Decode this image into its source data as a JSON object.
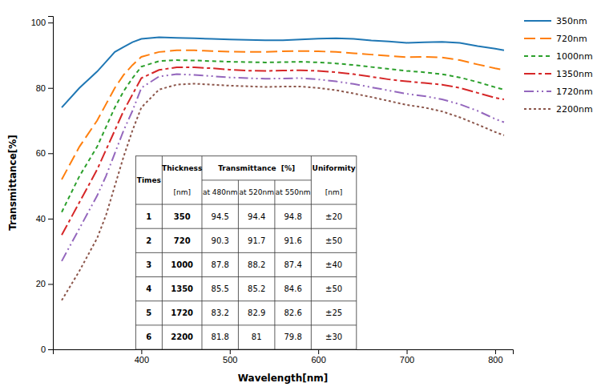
{
  "chart_data": {
    "type": "line",
    "xlabel": "Wavelength[nm]",
    "ylabel": "Transmittance[%]",
    "xlim": [
      300,
      820
    ],
    "ylim": [
      0,
      102
    ],
    "xticks": [
      400,
      500,
      600,
      700,
      800
    ],
    "yticks": [
      0,
      20,
      40,
      60,
      80,
      100
    ],
    "x": [
      310,
      330,
      350,
      360,
      370,
      380,
      390,
      400,
      420,
      440,
      460,
      480,
      500,
      520,
      540,
      560,
      580,
      600,
      620,
      640,
      660,
      680,
      700,
      720,
      740,
      760,
      780,
      800,
      810
    ],
    "series": [
      {
        "name": "350nm",
        "line_style": "solid",
        "values": [
          74,
          80,
          85,
          88,
          91,
          92.5,
          94.0,
          95.0,
          95.5,
          95.3,
          95.2,
          95.0,
          94.8,
          94.7,
          94.6,
          94.6,
          94.8,
          95.1,
          95.2,
          95.0,
          94.5,
          94.2,
          93.8,
          94.0,
          94.1,
          93.8,
          92.8,
          92.0,
          91.5
        ]
      },
      {
        "name": "720nm",
        "line_style": "dashed",
        "values": [
          52,
          62,
          70,
          75,
          80,
          84,
          87,
          89.5,
          91.0,
          91.5,
          91.5,
          91.3,
          91.1,
          91.0,
          91.0,
          91.2,
          91.3,
          91.2,
          91.0,
          90.6,
          90.2,
          89.8,
          89.4,
          89.5,
          89.3,
          88.5,
          87.2,
          86.0,
          85.5
        ]
      },
      {
        "name": "1000nm",
        "line_style": "dotted",
        "values": [
          42,
          53,
          62,
          68,
          74,
          79,
          83,
          86.5,
          88.2,
          88.5,
          88.4,
          88.2,
          88.0,
          87.9,
          87.8,
          87.9,
          88.0,
          87.8,
          87.5,
          87.0,
          86.4,
          85.8,
          85.2,
          84.8,
          84.2,
          83.2,
          81.8,
          80.2,
          79.5
        ]
      },
      {
        "name": "1350nm",
        "line_style": "dashdot",
        "values": [
          35,
          45,
          55,
          61,
          67,
          73,
          78,
          83,
          85.5,
          86.3,
          86.3,
          86.0,
          85.6,
          85.3,
          85.2,
          85.3,
          85.4,
          85.2,
          84.8,
          84.2,
          83.4,
          82.6,
          82.0,
          81.5,
          81.0,
          80.0,
          78.5,
          77.0,
          76.5
        ]
      },
      {
        "name": "1720nm",
        "line_style": "dashdotdotted",
        "values": [
          27,
          37,
          47,
          53,
          60,
          67,
          73,
          80,
          83.5,
          84.2,
          84.0,
          83.6,
          83.2,
          83.0,
          82.8,
          82.9,
          83.0,
          82.6,
          82.0,
          81.2,
          80.2,
          79.2,
          78.2,
          77.5,
          76.5,
          75.0,
          73.0,
          70.5,
          69.5
        ]
      },
      {
        "name": "2200nm",
        "line_style": "densely_dotted",
        "values": [
          15,
          24,
          34,
          41,
          50,
          59,
          67,
          74,
          79.5,
          81.0,
          81.3,
          81.0,
          80.7,
          80.5,
          80.3,
          80.4,
          80.4,
          80.0,
          79.3,
          78.3,
          77.2,
          76.0,
          74.8,
          74.0,
          72.8,
          71.0,
          68.8,
          66.5,
          65.5
        ]
      }
    ],
    "table": {
      "header_top": [
        "Times",
        "Thickness",
        "Transmittance  [%]",
        "Uniformity"
      ],
      "header_sub": [
        "[nm]",
        "at 480nm",
        "at 520nm",
        "at 550nm",
        "[nm]"
      ],
      "rows": [
        [
          1,
          350,
          94.5,
          94.4,
          94.8,
          "±20"
        ],
        [
          2,
          720,
          90.3,
          91.7,
          91.6,
          "±50"
        ],
        [
          3,
          1000,
          87.8,
          88.2,
          87.4,
          "±40"
        ],
        [
          4,
          1350,
          85.5,
          85.2,
          84.6,
          "±50"
        ],
        [
          5,
          1720,
          83.2,
          82.9,
          82.6,
          "±25"
        ],
        [
          6,
          2200,
          81.8,
          81.0,
          79.8,
          "±30"
        ]
      ]
    }
  }
}
